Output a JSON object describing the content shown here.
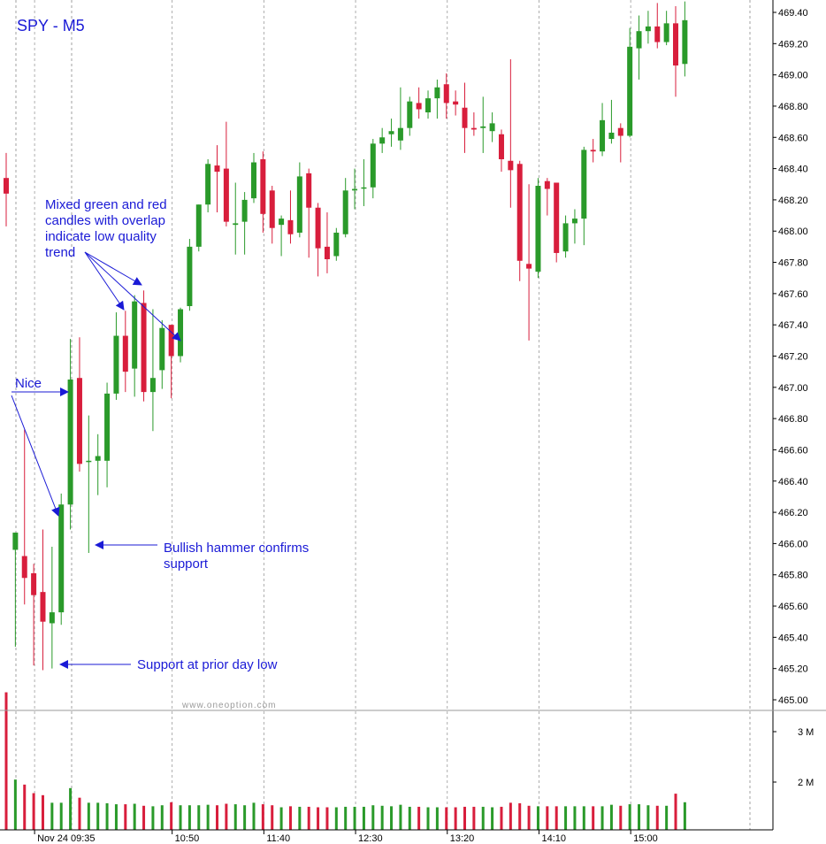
{
  "chart_data": {
    "type": "candlestick",
    "title": "SPY - M5",
    "watermark": "www.oneoption.com",
    "ylim": [
      464.9,
      469.5
    ],
    "volume_ylim": [
      0,
      3.4
    ],
    "y_ticks": [
      "469.40",
      "469.20",
      "469.00",
      "468.80",
      "468.60",
      "468.40",
      "468.20",
      "468.00",
      "467.80",
      "467.60",
      "467.40",
      "467.20",
      "467.00",
      "466.80",
      "466.60",
      "466.40",
      "466.20",
      "466.00",
      "465.80",
      "465.60",
      "465.40",
      "465.20",
      "465.00"
    ],
    "volume_ticks": [
      "3 M",
      "2 M"
    ],
    "x_labels": [
      {
        "bar": 3,
        "label": "Nov 24 09:35"
      },
      {
        "bar": 18,
        "label": "10:50"
      },
      {
        "bar": 28,
        "label": "11:40"
      },
      {
        "bar": 38,
        "label": "12:30"
      },
      {
        "bar": 48,
        "label": "13:20"
      },
      {
        "bar": 58,
        "label": "14:10"
      },
      {
        "bar": 68,
        "label": "15:00"
      }
    ],
    "session_breaks": [
      1,
      7,
      19,
      59
    ],
    "colors": {
      "up": "#2a9a2a",
      "down": "#d81e3c",
      "annotation": "#1a1ad6",
      "grid": "#9a9a9a"
    },
    "candles": [
      {
        "o": 468.34,
        "h": 468.5,
        "l": 468.03,
        "c": 468.24,
        "v": 3.78
      },
      {
        "o": 465.96,
        "h": 466.07,
        "l": 465.34,
        "c": 466.07,
        "v": 2.05
      },
      {
        "o": 465.92,
        "h": 466.73,
        "l": 465.61,
        "c": 465.78,
        "v": 1.95
      },
      {
        "o": 465.81,
        "h": 465.87,
        "l": 465.22,
        "c": 465.67,
        "v": 1.78
      },
      {
        "o": 465.69,
        "h": 466.09,
        "l": 465.19,
        "c": 465.5,
        "v": 1.74
      },
      {
        "o": 465.49,
        "h": 465.98,
        "l": 465.2,
        "c": 465.56,
        "v": 1.59
      },
      {
        "o": 465.56,
        "h": 466.32,
        "l": 465.48,
        "c": 466.25,
        "v": 1.59
      },
      {
        "o": 466.25,
        "h": 467.31,
        "l": 466.09,
        "c": 467.05,
        "v": 1.88
      },
      {
        "o": 467.06,
        "h": 467.32,
        "l": 466.46,
        "c": 466.51,
        "v": 1.69
      },
      {
        "o": 466.53,
        "h": 466.82,
        "l": 465.94,
        "c": 466.53,
        "v": 1.59
      },
      {
        "o": 466.53,
        "h": 466.7,
        "l": 466.31,
        "c": 466.56,
        "v": 1.59
      },
      {
        "o": 466.53,
        "h": 467.03,
        "l": 466.36,
        "c": 466.96,
        "v": 1.58
      },
      {
        "o": 466.96,
        "h": 467.48,
        "l": 466.92,
        "c": 467.33,
        "v": 1.56
      },
      {
        "o": 467.33,
        "h": 467.49,
        "l": 466.97,
        "c": 467.1,
        "v": 1.56
      },
      {
        "o": 467.12,
        "h": 467.59,
        "l": 466.94,
        "c": 467.55,
        "v": 1.57
      },
      {
        "o": 467.54,
        "h": 467.62,
        "l": 466.91,
        "c": 466.97,
        "v": 1.53
      },
      {
        "o": 466.97,
        "h": 467.5,
        "l": 466.72,
        "c": 467.06,
        "v": 1.52
      },
      {
        "o": 467.11,
        "h": 467.43,
        "l": 466.99,
        "c": 467.38,
        "v": 1.54
      },
      {
        "o": 467.4,
        "h": 467.4,
        "l": 466.93,
        "c": 467.2,
        "v": 1.6
      },
      {
        "o": 467.2,
        "h": 467.51,
        "l": 467.16,
        "c": 467.5,
        "v": 1.54
      },
      {
        "o": 467.52,
        "h": 467.95,
        "l": 467.49,
        "c": 467.9,
        "v": 1.54
      },
      {
        "o": 467.9,
        "h": 468.17,
        "l": 467.87,
        "c": 468.17,
        "v": 1.54
      },
      {
        "o": 468.17,
        "h": 468.46,
        "l": 468.12,
        "c": 468.43,
        "v": 1.55
      },
      {
        "o": 468.42,
        "h": 468.55,
        "l": 468.12,
        "c": 468.38,
        "v": 1.54
      },
      {
        "o": 468.4,
        "h": 468.7,
        "l": 468.03,
        "c": 468.06,
        "v": 1.57
      },
      {
        "o": 468.04,
        "h": 468.31,
        "l": 467.85,
        "c": 468.05,
        "v": 1.56
      },
      {
        "o": 468.06,
        "h": 468.25,
        "l": 467.85,
        "c": 468.2,
        "v": 1.54
      },
      {
        "o": 468.21,
        "h": 468.5,
        "l": 468.18,
        "c": 468.44,
        "v": 1.59
      },
      {
        "o": 468.46,
        "h": 468.51,
        "l": 467.99,
        "c": 468.11,
        "v": 1.56
      },
      {
        "o": 468.26,
        "h": 468.29,
        "l": 467.92,
        "c": 468.02,
        "v": 1.54
      },
      {
        "o": 468.04,
        "h": 468.1,
        "l": 467.84,
        "c": 468.08,
        "v": 1.5
      },
      {
        "o": 468.07,
        "h": 468.26,
        "l": 467.92,
        "c": 467.98,
        "v": 1.52
      },
      {
        "o": 467.99,
        "h": 468.44,
        "l": 467.96,
        "c": 468.35,
        "v": 1.51
      },
      {
        "o": 468.37,
        "h": 468.4,
        "l": 467.83,
        "c": 468.15,
        "v": 1.51
      },
      {
        "o": 468.15,
        "h": 468.18,
        "l": 467.71,
        "c": 467.89,
        "v": 1.5
      },
      {
        "o": 467.9,
        "h": 468.12,
        "l": 467.73,
        "c": 467.82,
        "v": 1.5
      },
      {
        "o": 467.84,
        "h": 468.02,
        "l": 467.81,
        "c": 467.99,
        "v": 1.5
      },
      {
        "o": 467.98,
        "h": 468.34,
        "l": 467.96,
        "c": 468.26,
        "v": 1.51
      },
      {
        "o": 468.26,
        "h": 468.4,
        "l": 468.14,
        "c": 468.27,
        "v": 1.51
      },
      {
        "o": 468.28,
        "h": 468.46,
        "l": 468.16,
        "c": 468.28,
        "v": 1.51
      },
      {
        "o": 468.28,
        "h": 468.59,
        "l": 468.21,
        "c": 468.56,
        "v": 1.54
      },
      {
        "o": 468.56,
        "h": 468.66,
        "l": 468.5,
        "c": 468.6,
        "v": 1.53
      },
      {
        "o": 468.62,
        "h": 468.72,
        "l": 468.54,
        "c": 468.64,
        "v": 1.52
      },
      {
        "o": 468.58,
        "h": 468.92,
        "l": 468.52,
        "c": 468.66,
        "v": 1.55
      },
      {
        "o": 468.66,
        "h": 468.86,
        "l": 468.61,
        "c": 468.83,
        "v": 1.51
      },
      {
        "o": 468.82,
        "h": 468.92,
        "l": 468.72,
        "c": 468.78,
        "v": 1.51
      },
      {
        "o": 468.76,
        "h": 468.9,
        "l": 468.72,
        "c": 468.85,
        "v": 1.5
      },
      {
        "o": 468.85,
        "h": 468.97,
        "l": 468.72,
        "c": 468.92,
        "v": 1.5
      },
      {
        "o": 468.94,
        "h": 469.01,
        "l": 468.72,
        "c": 468.82,
        "v": 1.5
      },
      {
        "o": 468.83,
        "h": 468.9,
        "l": 468.74,
        "c": 468.81,
        "v": 1.5
      },
      {
        "o": 468.79,
        "h": 468.95,
        "l": 468.5,
        "c": 468.66,
        "v": 1.51
      },
      {
        "o": 468.66,
        "h": 468.76,
        "l": 468.61,
        "c": 468.65,
        "v": 1.51
      },
      {
        "o": 468.66,
        "h": 468.86,
        "l": 468.5,
        "c": 468.67,
        "v": 1.51
      },
      {
        "o": 468.64,
        "h": 468.76,
        "l": 468.57,
        "c": 468.69,
        "v": 1.5
      },
      {
        "o": 468.62,
        "h": 468.65,
        "l": 468.38,
        "c": 468.46,
        "v": 1.51
      },
      {
        "o": 468.45,
        "h": 469.1,
        "l": 468.15,
        "c": 468.39,
        "v": 1.59
      },
      {
        "o": 468.43,
        "h": 468.45,
        "l": 467.68,
        "c": 467.81,
        "v": 1.58
      },
      {
        "o": 467.79,
        "h": 468.3,
        "l": 467.3,
        "c": 467.76,
        "v": 1.53
      },
      {
        "o": 467.74,
        "h": 468.34,
        "l": 467.7,
        "c": 468.29,
        "v": 1.52
      },
      {
        "o": 468.32,
        "h": 468.34,
        "l": 468.1,
        "c": 468.27,
        "v": 1.52
      },
      {
        "o": 468.31,
        "h": 468.31,
        "l": 467.8,
        "c": 467.86,
        "v": 1.52
      },
      {
        "o": 467.87,
        "h": 468.1,
        "l": 467.83,
        "c": 468.05,
        "v": 1.52
      },
      {
        "o": 468.05,
        "h": 468.14,
        "l": 467.92,
        "c": 468.08,
        "v": 1.52
      },
      {
        "o": 468.08,
        "h": 468.54,
        "l": 467.91,
        "c": 468.52,
        "v": 1.52
      },
      {
        "o": 468.52,
        "h": 468.59,
        "l": 468.44,
        "c": 468.51,
        "v": 1.52
      },
      {
        "o": 468.51,
        "h": 468.82,
        "l": 468.48,
        "c": 468.71,
        "v": 1.52
      },
      {
        "o": 468.59,
        "h": 468.84,
        "l": 468.56,
        "c": 468.63,
        "v": 1.55
      },
      {
        "o": 468.66,
        "h": 468.69,
        "l": 468.44,
        "c": 468.61,
        "v": 1.53
      },
      {
        "o": 468.61,
        "h": 469.3,
        "l": 468.6,
        "c": 469.18,
        "v": 1.56
      },
      {
        "o": 469.17,
        "h": 469.38,
        "l": 468.97,
        "c": 469.28,
        "v": 1.56
      },
      {
        "o": 469.28,
        "h": 469.41,
        "l": 469.2,
        "c": 469.31,
        "v": 1.54
      },
      {
        "o": 469.31,
        "h": 469.46,
        "l": 469.17,
        "c": 469.21,
        "v": 1.53
      },
      {
        "o": 469.21,
        "h": 469.41,
        "l": 469.19,
        "c": 469.33,
        "v": 1.53
      },
      {
        "o": 469.33,
        "h": 469.44,
        "l": 468.86,
        "c": 469.06,
        "v": 1.77
      },
      {
        "o": 469.07,
        "h": 469.47,
        "l": 468.99,
        "c": 469.35,
        "v": 1.6
      }
    ],
    "annotations": [
      {
        "id": "nice",
        "lines": [
          "Nice"
        ]
      },
      {
        "id": "hammer",
        "lines": [
          "Bullish hammer confirms",
          "support"
        ]
      },
      {
        "id": "support",
        "lines": [
          "Support at prior day low"
        ]
      },
      {
        "id": "mixed",
        "lines": [
          "Mixed green and red",
          "candles with overlap",
          "indicate low quality",
          "trend"
        ]
      }
    ]
  }
}
